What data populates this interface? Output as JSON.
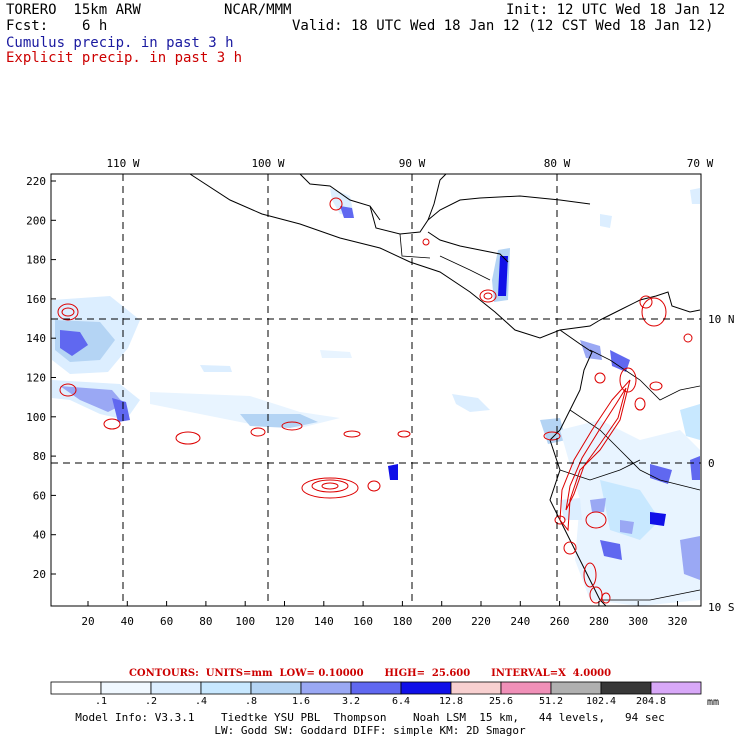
{
  "header": {
    "model": "TORERO  15km ARW",
    "center": "NCAR/MMM",
    "init": "Init: 12 UTC Wed 18 Jan 12",
    "fcst_label": "Fcst:",
    "fcst_value": "6 h",
    "valid": "Valid: 18 UTC Wed 18 Jan 12 (12 CST Wed 18 Jan 12)",
    "field1": "Cumulus precip. in past 3 h",
    "field2": "Explicit precip. in past 3 h"
  },
  "map": {
    "lon_labels": [
      "110 W",
      "100 W",
      "90 W",
      "80 W",
      "70 W"
    ],
    "lat_labels": [
      "10 N",
      "0",
      "10 S"
    ],
    "y_ticks": [
      "220",
      "200",
      "180",
      "160",
      "140",
      "120",
      "100",
      "80",
      "60",
      "40",
      "20"
    ],
    "x_ticks": [
      "20",
      "40",
      "60",
      "80",
      "100",
      "120",
      "140",
      "160",
      "180",
      "200",
      "220",
      "240",
      "260",
      "280",
      "300",
      "320"
    ]
  },
  "contours": {
    "units": "CONTOURS:  UNITS=mm  LOW= 0.10000      HIGH=  25.600      INTERVAL=X  4.0000"
  },
  "colorbar": {
    "labels": [
      ".1",
      ".2",
      ".4",
      ".8",
      "1.6",
      "3.2",
      "6.4",
      "12.8",
      "25.6",
      "51.2",
      "102.4",
      "204.8"
    ],
    "unit": "mm",
    "colors": [
      "#ffffff",
      "#f0f8ff",
      "#dceeff",
      "#c8e8ff",
      "#b4d4f4",
      "#9aa8f4",
      "#6068f0",
      "#1010e8",
      "#f8d0d0",
      "#f090b8",
      "#b0b0b0",
      "#383838",
      "#d8a8f8"
    ]
  },
  "footer": {
    "line1": "Model Info: V3.3.1    Tiedtke YSU PBL  Thompson    Noah LSM  15 km,   44 levels,   94 sec",
    "line2": "LW: Godd SW: Goddard DIFF: simple KM: 2D Smagor"
  }
}
